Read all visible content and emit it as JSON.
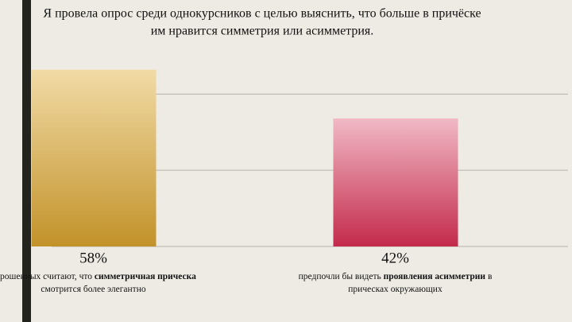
{
  "chart_data": {
    "type": "bar",
    "title": [
      "Я провела опрос среди однокурсников с целью выяснить, что больше в причёске",
      "им нравится симметрия или асимметрия."
    ],
    "categories": [
      null,
      null
    ],
    "values": [
      58,
      42
    ],
    "value_labels": [
      "58%",
      "42%"
    ],
    "colors": [
      [
        "#f1dba6",
        "#c2922a"
      ],
      [
        "#f1b9c6",
        "#c32a4b"
      ]
    ],
    "captions": [
      [
        [
          {
            "text": "опрошенных считают, что ",
            "bold": false
          },
          {
            "text": "симметричная прическа",
            "bold": true
          }
        ],
        [
          {
            "text": "смотрится более элегантно",
            "bold": false
          }
        ]
      ],
      [
        [
          {
            "text": "предпочли бы видеть ",
            "bold": false
          },
          {
            "text": "проявления асимметрии",
            "bold": true
          },
          {
            "text": " в",
            "bold": false
          }
        ],
        [
          {
            "text": "прическах окружающих",
            "bold": false
          }
        ]
      ]
    ],
    "ylim": [
      0,
      60
    ],
    "yticks": [
      0,
      25,
      50
    ],
    "grid": true
  }
}
